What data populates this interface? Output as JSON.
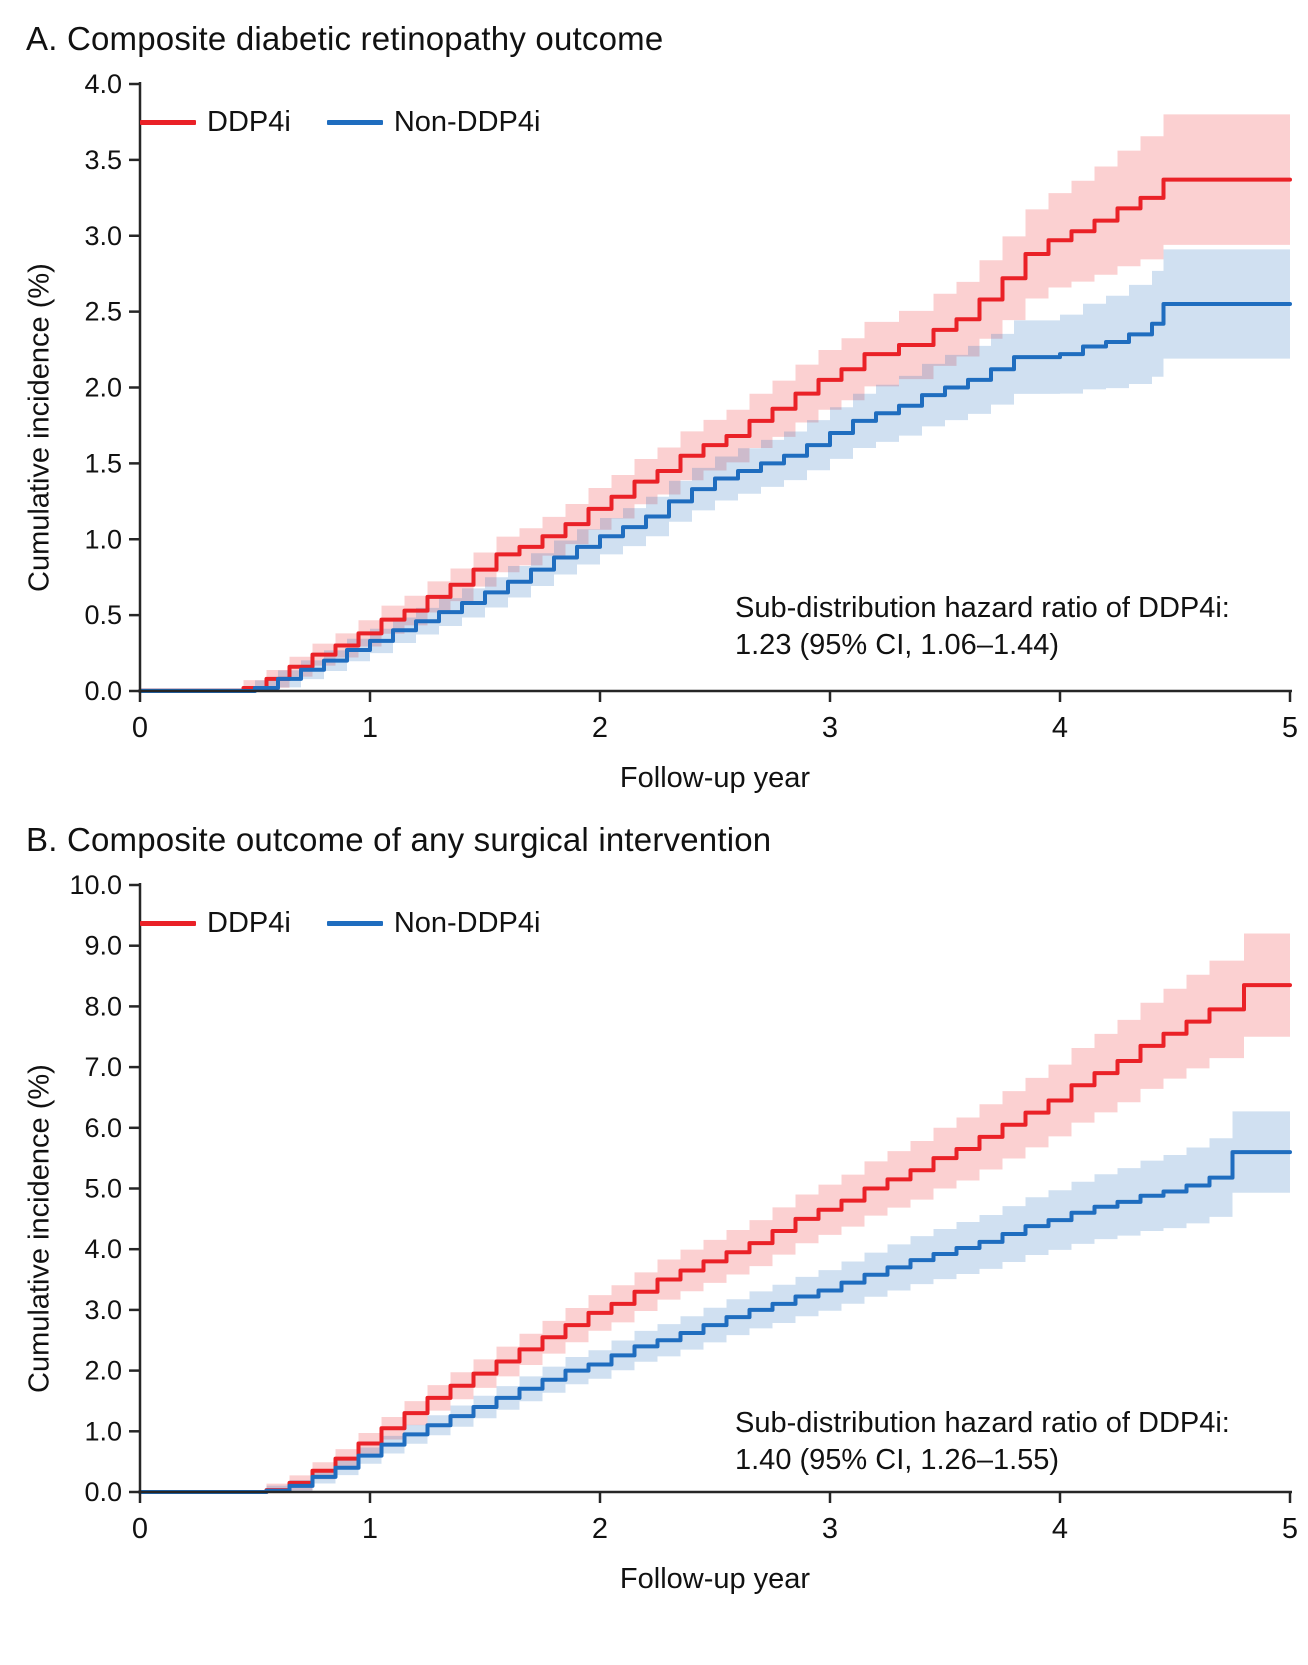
{
  "chart_data": [
    {
      "type": "line",
      "subtype": "cumulative-incidence-step-curves-with-95ci-bands",
      "title": "A. Composite diabetic retinopathy outcome",
      "xlabel": "Follow-up year",
      "ylabel": "Cumulative incidence (%)",
      "xlim": [
        0,
        5
      ],
      "ylim": [
        0,
        4
      ],
      "xticks": [
        "0",
        "1",
        "2",
        "3",
        "4",
        "5"
      ],
      "yticks": [
        "0.0",
        "0.5",
        "1.0",
        "1.5",
        "2.0",
        "2.5",
        "3.0",
        "3.5",
        "4.0"
      ],
      "grid": false,
      "legend_position": "top-left-inside",
      "annotation": [
        "Sub-distribution hazard ratio of DDP4i:",
        "1.23 (95% CI, 1.06–1.44)"
      ],
      "series": [
        {
          "key": "ddp4i",
          "name": "DDP4i",
          "color": "#EA2127",
          "final_value": 3.37,
          "x": [
            0,
            0.45,
            0.55,
            0.65,
            0.75,
            0.85,
            0.95,
            1.05,
            1.15,
            1.25,
            1.35,
            1.45,
            1.55,
            1.65,
            1.75,
            1.85,
            1.95,
            2.05,
            2.15,
            2.25,
            2.35,
            2.45,
            2.55,
            2.65,
            2.75,
            2.85,
            2.95,
            3.05,
            3.15,
            3.3,
            3.45,
            3.55,
            3.65,
            3.75,
            3.85,
            3.95,
            4.05,
            4.15,
            4.25,
            4.35,
            4.45,
            5.0
          ],
          "y": [
            0,
            0.02,
            0.08,
            0.16,
            0.24,
            0.3,
            0.38,
            0.47,
            0.53,
            0.62,
            0.7,
            0.8,
            0.9,
            0.95,
            1.02,
            1.1,
            1.2,
            1.28,
            1.38,
            1.45,
            1.55,
            1.62,
            1.68,
            1.78,
            1.86,
            1.96,
            2.05,
            2.12,
            2.22,
            2.28,
            2.38,
            2.45,
            2.58,
            2.72,
            2.88,
            2.97,
            3.03,
            3.1,
            3.18,
            3.25,
            3.37,
            3.37
          ],
          "ci": [
            [
              0,
              0.02
            ],
            [
              1,
              0.09
            ],
            [
              2,
              0.14
            ],
            [
              3,
              0.2
            ],
            [
              3.6,
              0.25
            ],
            [
              4,
              0.32
            ],
            [
              4.45,
              0.43
            ],
            [
              5,
              0.43
            ]
          ]
        },
        {
          "key": "non-ddp4i",
          "name": "Non-DDP4i",
          "color": "#1F6DBF",
          "final_value": 2.55,
          "x": [
            0,
            0.5,
            0.6,
            0.7,
            0.8,
            0.9,
            1.0,
            1.1,
            1.2,
            1.3,
            1.4,
            1.5,
            1.6,
            1.7,
            1.8,
            1.9,
            2.0,
            2.1,
            2.2,
            2.3,
            2.4,
            2.5,
            2.6,
            2.7,
            2.8,
            2.9,
            3.0,
            3.1,
            3.2,
            3.3,
            3.4,
            3.5,
            3.6,
            3.7,
            3.8,
            4.0,
            4.1,
            4.2,
            4.3,
            4.4,
            4.45,
            5.0
          ],
          "y": [
            0,
            0.02,
            0.08,
            0.14,
            0.2,
            0.27,
            0.33,
            0.4,
            0.46,
            0.52,
            0.58,
            0.65,
            0.72,
            0.8,
            0.88,
            0.95,
            1.02,
            1.08,
            1.15,
            1.25,
            1.33,
            1.4,
            1.45,
            1.5,
            1.55,
            1.62,
            1.7,
            1.78,
            1.83,
            1.88,
            1.95,
            2.0,
            2.05,
            2.12,
            2.2,
            2.22,
            2.27,
            2.3,
            2.35,
            2.42,
            2.55,
            2.55
          ],
          "ci": [
            [
              0,
              0.02
            ],
            [
              1,
              0.08
            ],
            [
              2,
              0.12
            ],
            [
              3,
              0.17
            ],
            [
              4,
              0.26
            ],
            [
              4.45,
              0.36
            ],
            [
              5,
              0.36
            ]
          ]
        }
      ]
    },
    {
      "type": "line",
      "subtype": "cumulative-incidence-step-curves-with-95ci-bands",
      "title": "B. Composite outcome of any surgical intervention",
      "xlabel": "Follow-up year",
      "ylabel": "Cumulative incidence (%)",
      "xlim": [
        0,
        5
      ],
      "ylim": [
        0,
        10
      ],
      "xticks": [
        "0",
        "1",
        "2",
        "3",
        "4",
        "5"
      ],
      "yticks": [
        "0.0",
        "1.0",
        "2.0",
        "3.0",
        "4.0",
        "5.0",
        "6.0",
        "7.0",
        "8.0",
        "9.0",
        "10.0"
      ],
      "grid": false,
      "legend_position": "top-left-inside",
      "annotation": [
        "Sub-distribution hazard ratio of DDP4i:",
        "1.40 (95% CI, 1.26–1.55)"
      ],
      "series": [
        {
          "key": "ddp4i",
          "name": "DDP4i",
          "color": "#EA2127",
          "final_value": 8.35,
          "x": [
            0,
            0.55,
            0.65,
            0.75,
            0.85,
            0.95,
            1.05,
            1.15,
            1.25,
            1.35,
            1.45,
            1.55,
            1.65,
            1.75,
            1.85,
            1.95,
            2.05,
            2.15,
            2.25,
            2.35,
            2.45,
            2.55,
            2.65,
            2.75,
            2.85,
            2.95,
            3.05,
            3.15,
            3.25,
            3.35,
            3.45,
            3.55,
            3.65,
            3.75,
            3.85,
            3.95,
            4.05,
            4.15,
            4.25,
            4.35,
            4.45,
            4.55,
            4.65,
            4.8,
            5.0
          ],
          "y": [
            0,
            0.03,
            0.15,
            0.35,
            0.55,
            0.8,
            1.05,
            1.3,
            1.55,
            1.75,
            1.95,
            2.15,
            2.35,
            2.55,
            2.75,
            2.95,
            3.1,
            3.3,
            3.5,
            3.65,
            3.8,
            3.95,
            4.1,
            4.3,
            4.5,
            4.65,
            4.8,
            5.0,
            5.15,
            5.3,
            5.5,
            5.65,
            5.85,
            6.05,
            6.25,
            6.45,
            6.7,
            6.9,
            7.1,
            7.35,
            7.55,
            7.75,
            7.95,
            8.35,
            8.35
          ],
          "ci": [
            [
              0,
              0.02
            ],
            [
              1,
              0.18
            ],
            [
              2,
              0.3
            ],
            [
              3,
              0.42
            ],
            [
              4,
              0.6
            ],
            [
              4.8,
              0.85
            ],
            [
              5,
              0.85
            ]
          ]
        },
        {
          "key": "non-ddp4i",
          "name": "Non-DDP4i",
          "color": "#1F6DBF",
          "final_value": 5.6,
          "x": [
            0,
            0.55,
            0.65,
            0.75,
            0.85,
            0.95,
            1.05,
            1.15,
            1.25,
            1.35,
            1.45,
            1.55,
            1.65,
            1.75,
            1.85,
            1.95,
            2.05,
            2.15,
            2.25,
            2.35,
            2.45,
            2.55,
            2.65,
            2.75,
            2.85,
            2.95,
            3.05,
            3.15,
            3.25,
            3.35,
            3.45,
            3.55,
            3.65,
            3.75,
            3.85,
            3.95,
            4.05,
            4.15,
            4.25,
            4.35,
            4.45,
            4.55,
            4.65,
            4.75,
            5.0
          ],
          "y": [
            0,
            0.02,
            0.1,
            0.25,
            0.4,
            0.6,
            0.78,
            0.95,
            1.1,
            1.25,
            1.4,
            1.55,
            1.7,
            1.85,
            2.0,
            2.1,
            2.25,
            2.4,
            2.5,
            2.62,
            2.75,
            2.88,
            3.0,
            3.1,
            3.22,
            3.32,
            3.45,
            3.58,
            3.7,
            3.82,
            3.92,
            4.02,
            4.12,
            4.25,
            4.38,
            4.48,
            4.6,
            4.7,
            4.78,
            4.88,
            4.95,
            5.05,
            5.18,
            5.6,
            5.6
          ],
          "ci": [
            [
              0,
              0.02
            ],
            [
              1,
              0.14
            ],
            [
              2,
              0.24
            ],
            [
              3,
              0.34
            ],
            [
              4,
              0.5
            ],
            [
              4.75,
              0.67
            ],
            [
              5,
              0.67
            ]
          ]
        }
      ]
    }
  ]
}
